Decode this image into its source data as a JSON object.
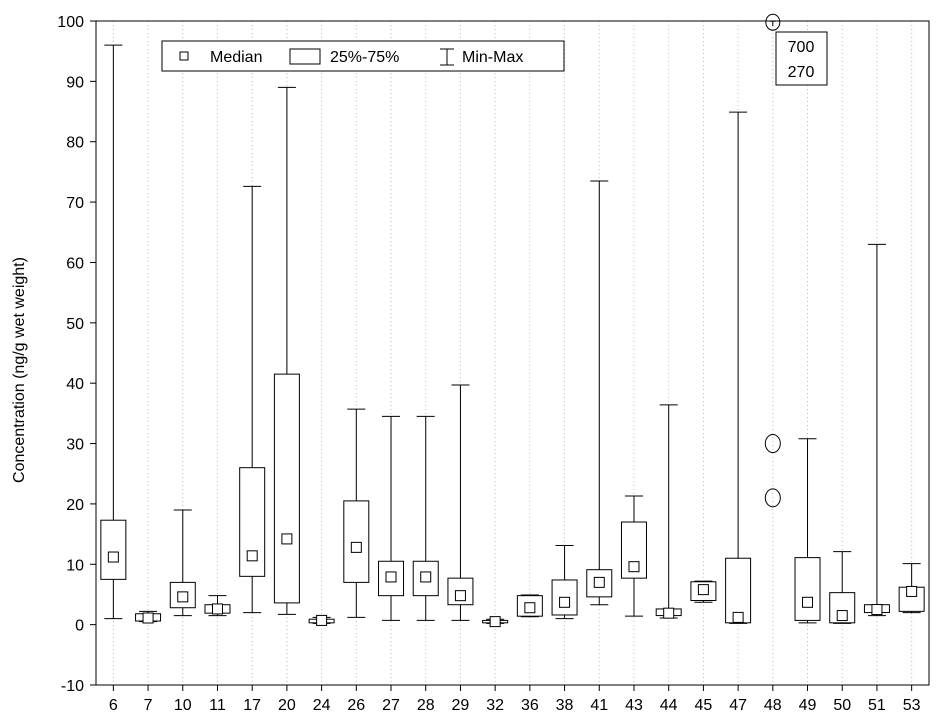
{
  "chart_data": {
    "type": "box",
    "title": "",
    "xlabel": "",
    "ylabel": "Concentration (ng/g wet weight)",
    "ylim": [
      -10,
      100
    ],
    "yticks": [
      -10,
      0,
      10,
      20,
      30,
      40,
      50,
      60,
      70,
      80,
      90,
      100
    ],
    "grid": "vertical dotted",
    "legend": {
      "position": "top-left",
      "items": [
        "Median",
        "25%-75%",
        "Min-Max"
      ]
    },
    "categories": [
      "6",
      "7",
      "10",
      "11",
      "17",
      "20",
      "24",
      "26",
      "27",
      "28",
      "29",
      "32",
      "36",
      "38",
      "41",
      "43",
      "44",
      "45",
      "47",
      "48",
      "49",
      "50",
      "51",
      "53"
    ],
    "boxes": [
      {
        "label": "6",
        "min": 1.0,
        "q1": 7.5,
        "median": 11.2,
        "q3": 17.3,
        "max": 96.0
      },
      {
        "label": "7",
        "min": 0.5,
        "q1": 0.6,
        "median": 1.1,
        "q3": 1.8,
        "max": 2.2
      },
      {
        "label": "10",
        "min": 1.5,
        "q1": 2.8,
        "median": 4.6,
        "q3": 7.0,
        "max": 19.0
      },
      {
        "label": "11",
        "min": 1.5,
        "q1": 1.9,
        "median": 2.6,
        "q3": 3.3,
        "max": 4.8
      },
      {
        "label": "17",
        "min": 2.0,
        "q1": 8.0,
        "median": 11.4,
        "q3": 26.0,
        "max": 72.6
      },
      {
        "label": "20",
        "min": 1.7,
        "q1": 3.6,
        "median": 14.2,
        "q3": 41.5,
        "max": 89.0
      },
      {
        "label": "24",
        "min": 0.2,
        "q1": 0.3,
        "median": 0.7,
        "q3": 0.9,
        "max": 1.2
      },
      {
        "label": "26",
        "min": 1.2,
        "q1": 7.0,
        "median": 12.8,
        "q3": 20.5,
        "max": 35.7
      },
      {
        "label": "27",
        "min": 0.7,
        "q1": 4.8,
        "median": 7.9,
        "q3": 10.5,
        "max": 34.5
      },
      {
        "label": "28",
        "min": 0.7,
        "q1": 4.8,
        "median": 7.9,
        "q3": 10.5,
        "max": 34.5
      },
      {
        "label": "29",
        "min": 0.7,
        "q1": 3.3,
        "median": 4.8,
        "q3": 7.7,
        "max": 39.7
      },
      {
        "label": "32",
        "min": 0.2,
        "q1": 0.3,
        "median": 0.5,
        "q3": 0.7,
        "max": 0.9
      },
      {
        "label": "36",
        "min": 1.3,
        "q1": 1.4,
        "median": 2.8,
        "q3": 4.8,
        "max": 4.9
      },
      {
        "label": "38",
        "min": 1.0,
        "q1": 1.6,
        "median": 3.7,
        "q3": 7.4,
        "max": 13.1
      },
      {
        "label": "41",
        "min": 3.3,
        "q1": 4.6,
        "median": 7.0,
        "q3": 9.1,
        "max": 73.5
      },
      {
        "label": "43",
        "min": 1.4,
        "q1": 7.7,
        "median": 9.6,
        "q3": 17.0,
        "max": 21.3
      },
      {
        "label": "44",
        "min": 1.1,
        "q1": 1.5,
        "median": 1.9,
        "q3": 2.6,
        "max": 36.4
      },
      {
        "label": "45",
        "min": 3.7,
        "q1": 4.0,
        "median": 5.8,
        "q3": 7.1,
        "max": 7.2
      },
      {
        "label": "47",
        "min": 0.2,
        "q1": 0.3,
        "median": 1.2,
        "q3": 11.0,
        "max": 84.9
      },
      {
        "label": "48",
        "points": [
          21.0,
          30.0
        ],
        "max": 99.8
      },
      {
        "label": "49",
        "min": 0.3,
        "q1": 0.7,
        "median": 3.7,
        "q3": 11.1,
        "max": 30.8
      },
      {
        "label": "50",
        "min": 0.2,
        "q1": 0.3,
        "median": 1.5,
        "q3": 5.3,
        "max": 12.1
      },
      {
        "label": "51",
        "min": 1.5,
        "q1": 2.0,
        "median": 2.5,
        "q3": 3.3,
        "max": 63.0
      },
      {
        "label": "53",
        "min": 2.0,
        "q1": 2.2,
        "median": 5.5,
        "q3": 6.2,
        "max": 10.1
      }
    ],
    "annotations": [
      {
        "target": "48",
        "lines": [
          "700",
          "270"
        ]
      }
    ]
  }
}
